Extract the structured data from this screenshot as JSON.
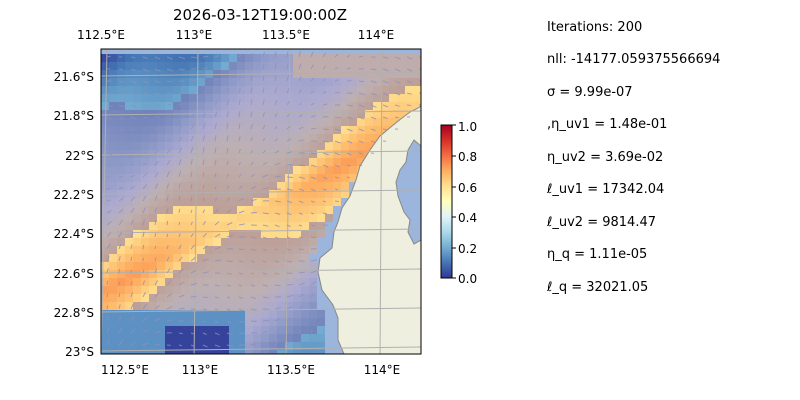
{
  "chart_data": {
    "type": "heatmap",
    "title": "2026-03-12T19:00:00Z",
    "x_ticks": [
      "112.5°E",
      "113°E",
      "113.5°E",
      "114°E"
    ],
    "y_ticks": [
      "21.6°S",
      "21.8°S",
      "22°S",
      "22.2°S",
      "22.4°S",
      "22.6°S",
      "22.8°S",
      "23°S"
    ],
    "x_range": [
      112.5,
      114.2
    ],
    "y_range": [
      -23.0,
      -21.5
    ],
    "colorbar": {
      "ticks": [
        "0.0",
        "0.2",
        "0.4",
        "0.6",
        "0.8",
        "1.0"
      ],
      "range": [
        0,
        1
      ],
      "colormap": "RdYlBu_r"
    },
    "overlays": [
      "land mask",
      "current vectors",
      "lat/lon gridlines"
    ],
    "colors": {
      "ocean": "#9bb5dc",
      "land": "#efefdf",
      "coast": "#888888",
      "grid": "#b0b0b0",
      "arrows": "#9090b8"
    }
  },
  "stats": [
    "Iterations: 200",
    "nll: -14177.059375566694",
    "σ = 9.99e-07",
    ",η_uv1 = 1.48e-01",
    "η_uv2 = 3.69e-02",
    "ℓ_uv1 = 17342.04",
    "ℓ_uv2 = 9814.47",
    "η_q = 1.11e-05",
    "ℓ_q = 32021.05"
  ]
}
